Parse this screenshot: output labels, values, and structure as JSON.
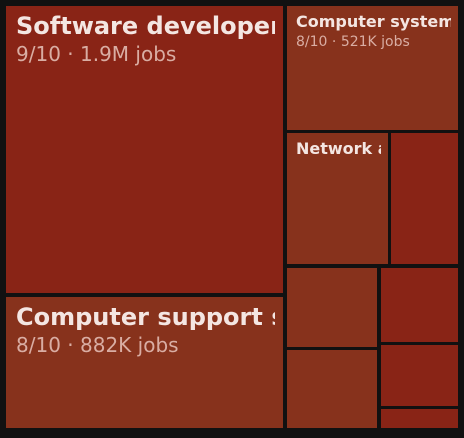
{
  "colors": {
    "background": "#111111",
    "tile_dark": "#892416",
    "tile_medium": "#87321c",
    "title_text": "#f4e6e2",
    "subtitle_text": "#d9ada3"
  },
  "chart_data": {
    "type": "treemap",
    "tiles": [
      {
        "label": "Software developers,",
        "score_text": "9/10",
        "jobs_text": "1.9M jobs",
        "score": 9,
        "color": "#892416"
      },
      {
        "label": "Computer support sp",
        "score_text": "8/10",
        "jobs_text": "882K jobs",
        "score": 8,
        "color": "#87321c"
      },
      {
        "label": "Computer system",
        "score_text": "8/10",
        "jobs_text": "521K jobs",
        "score": 8,
        "color": "#87321c"
      },
      {
        "label": "Network a",
        "score_text": "",
        "jobs_text": "",
        "score": 8,
        "color": "#87321c"
      },
      {
        "label": "",
        "score_text": "",
        "jobs_text": "",
        "score": 9,
        "color": "#892416"
      },
      {
        "label": "",
        "score_text": "",
        "jobs_text": "",
        "score": 8,
        "color": "#87321c"
      },
      {
        "label": "",
        "score_text": "",
        "jobs_text": "",
        "score": 9,
        "color": "#892416"
      },
      {
        "label": "",
        "score_text": "",
        "jobs_text": "",
        "score": 8,
        "color": "#87321c"
      },
      {
        "label": "",
        "score_text": "",
        "jobs_text": "",
        "score": 9,
        "color": "#892416"
      },
      {
        "label": "",
        "score_text": "",
        "jobs_text": "",
        "score": 9,
        "color": "#892416"
      }
    ]
  }
}
